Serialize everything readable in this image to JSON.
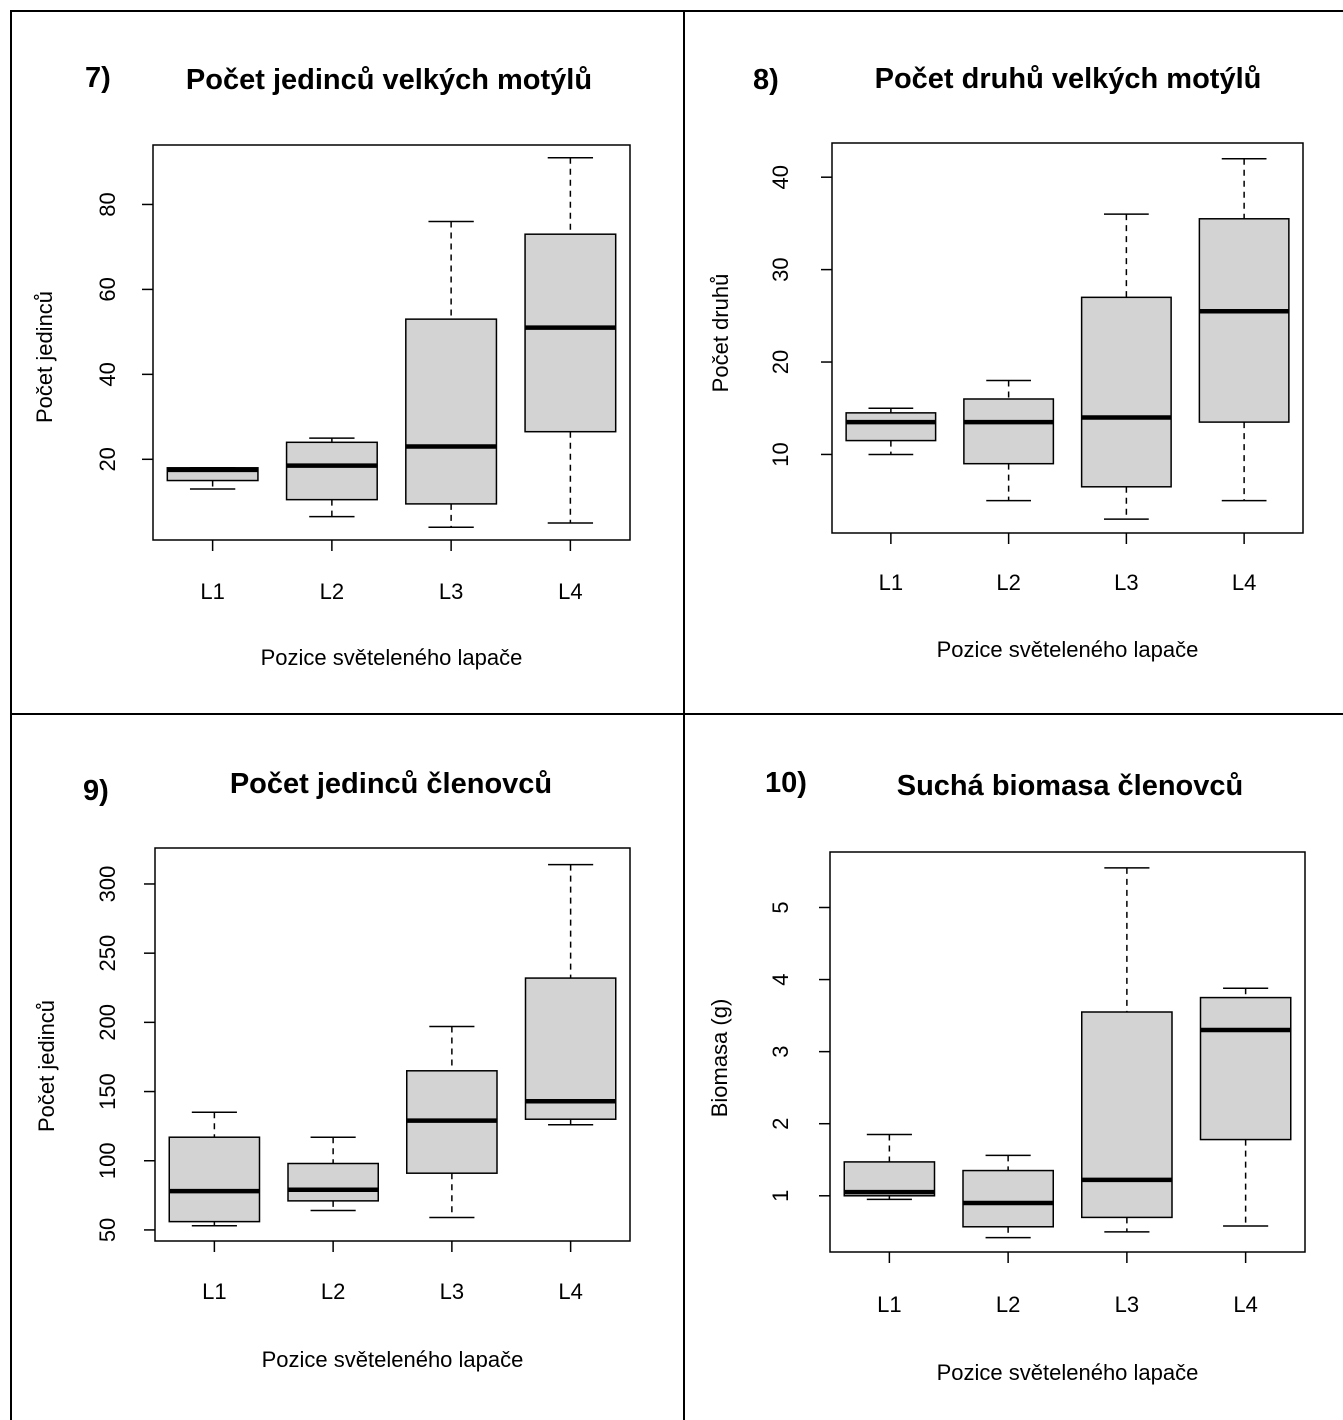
{
  "panels": [
    {
      "number": "7)",
      "chart_data": {
        "type": "box",
        "title": "Počet jedinců velkých motýlů",
        "xlabel": "Pozice světeleného lapače",
        "ylabel": "Počet jedinců",
        "categories": [
          "L1",
          "L2",
          "L3",
          "L4"
        ],
        "ylim": [
          1,
          94
        ],
        "yticks": [
          20,
          40,
          60,
          80
        ],
        "boxes": [
          {
            "min": 13,
            "q1": 15,
            "median": 17.5,
            "q3": 18,
            "max": 18
          },
          {
            "min": 6.5,
            "q1": 10.5,
            "median": 18.5,
            "q3": 24,
            "max": 25
          },
          {
            "min": 4,
            "q1": 9.5,
            "median": 23,
            "q3": 53,
            "max": 76
          },
          {
            "min": 5,
            "q1": 26.5,
            "median": 51,
            "q3": 73,
            "max": 91
          }
        ]
      }
    },
    {
      "number": "8)",
      "chart_data": {
        "type": "box",
        "title": "Počet druhů velkých motýlů",
        "xlabel": "Pozice světeleného lapače",
        "ylabel": "Počet druhů",
        "categories": [
          "L1",
          "L2",
          "L3",
          "L4"
        ],
        "ylim": [
          1.5,
          43.7
        ],
        "yticks": [
          10,
          20,
          30,
          40
        ],
        "boxes": [
          {
            "min": 10,
            "q1": 11.5,
            "median": 13.5,
            "q3": 14.5,
            "max": 15
          },
          {
            "min": 5,
            "q1": 9,
            "median": 13.5,
            "q3": 16,
            "max": 18
          },
          {
            "min": 3,
            "q1": 6.5,
            "median": 14,
            "q3": 27,
            "max": 36
          },
          {
            "min": 5,
            "q1": 13.5,
            "median": 25.5,
            "q3": 35.5,
            "max": 42
          }
        ]
      }
    },
    {
      "number": "9)",
      "chart_data": {
        "type": "box",
        "title": "Počet jedinců členovců",
        "xlabel": "Pozice světeleného lapače",
        "ylabel": "Počet jedinců",
        "categories": [
          "L1",
          "L2",
          "L3",
          "L4"
        ],
        "ylim": [
          42,
          326
        ],
        "yticks": [
          50,
          100,
          150,
          200,
          250,
          300
        ],
        "boxes": [
          {
            "min": 53,
            "q1": 56,
            "median": 78,
            "q3": 117,
            "max": 135
          },
          {
            "min": 64,
            "q1": 71,
            "median": 79,
            "q3": 98,
            "max": 117
          },
          {
            "min": 59,
            "q1": 91,
            "median": 129,
            "q3": 165,
            "max": 197
          },
          {
            "min": 126,
            "q1": 130,
            "median": 143,
            "q3": 232,
            "max": 314
          }
        ]
      }
    },
    {
      "number": "10)",
      "chart_data": {
        "type": "box",
        "title": "Suchá biomasa členovců",
        "xlabel": "Pozice světeleného lapače",
        "ylabel": "Biomasa (g)",
        "categories": [
          "L1",
          "L2",
          "L3",
          "L4"
        ],
        "ylim": [
          0.22,
          5.77
        ],
        "yticks": [
          1,
          2,
          3,
          4,
          5
        ],
        "boxes": [
          {
            "min": 0.95,
            "q1": 1.0,
            "median": 1.05,
            "q3": 1.47,
            "max": 1.85
          },
          {
            "min": 0.42,
            "q1": 0.57,
            "median": 0.9,
            "q3": 1.35,
            "max": 1.56
          },
          {
            "min": 0.5,
            "q1": 0.7,
            "median": 1.22,
            "q3": 3.55,
            "max": 5.55
          },
          {
            "min": 0.58,
            "q1": 1.78,
            "median": 3.3,
            "q3": 3.75,
            "max": 3.88
          }
        ]
      }
    }
  ]
}
